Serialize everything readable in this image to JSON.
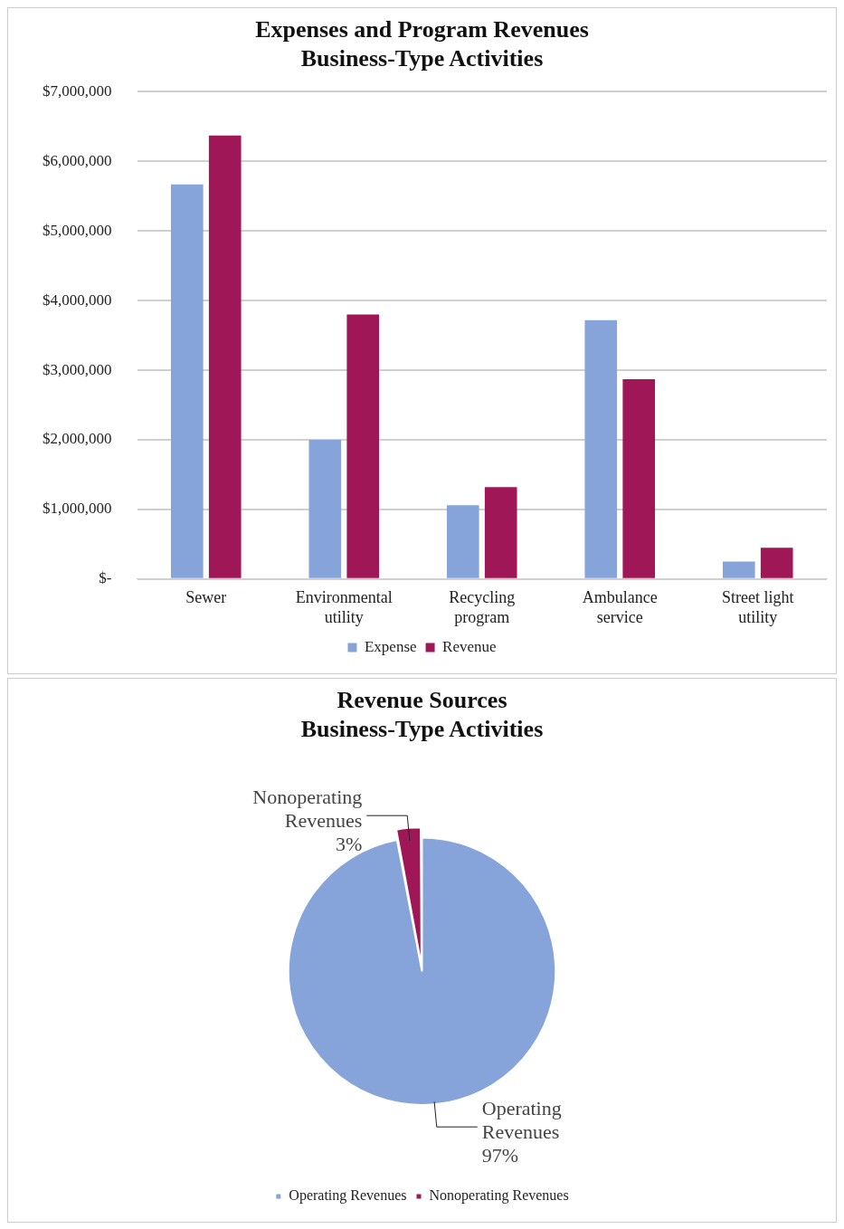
{
  "chart_data": [
    {
      "type": "bar",
      "title": "Expenses and Program Revenues\nBusiness-Type Activities",
      "categories": [
        "Sewer",
        "Environmental utility",
        "Recycling program",
        "Ambulance service",
        "Street light utility"
      ],
      "series": [
        {
          "name": "Expense",
          "color": "#86a4d9",
          "values": [
            5670000,
            2000000,
            1060000,
            3720000,
            250000
          ]
        },
        {
          "name": "Revenue",
          "color": "#a01758",
          "values": [
            6370000,
            3800000,
            1320000,
            2870000,
            450000
          ]
        }
      ],
      "ylim": [
        0,
        7000000
      ],
      "yticks": [
        {
          "value": 0,
          "label": "$-"
        },
        {
          "value": 1000000,
          "label": "$1,000,000"
        },
        {
          "value": 2000000,
          "label": "$2,000,000"
        },
        {
          "value": 3000000,
          "label": "$3,000,000"
        },
        {
          "value": 4000000,
          "label": "$4,000,000"
        },
        {
          "value": 5000000,
          "label": "$5,000,000"
        },
        {
          "value": 6000000,
          "label": "$6,000,000"
        },
        {
          "value": 7000000,
          "label": "$7,000,000"
        }
      ],
      "grid": "y",
      "legend": "bottom"
    },
    {
      "type": "pie",
      "title": "Revenue Sources\nBusiness-Type Activities",
      "categories": [
        "Operating Revenues",
        "Nonoperating Revenues"
      ],
      "values": [
        97,
        3
      ],
      "colors": [
        "#86a4d9",
        "#a01758"
      ],
      "value_labels": [
        "97%",
        "3%"
      ],
      "legend": "bottom"
    }
  ]
}
